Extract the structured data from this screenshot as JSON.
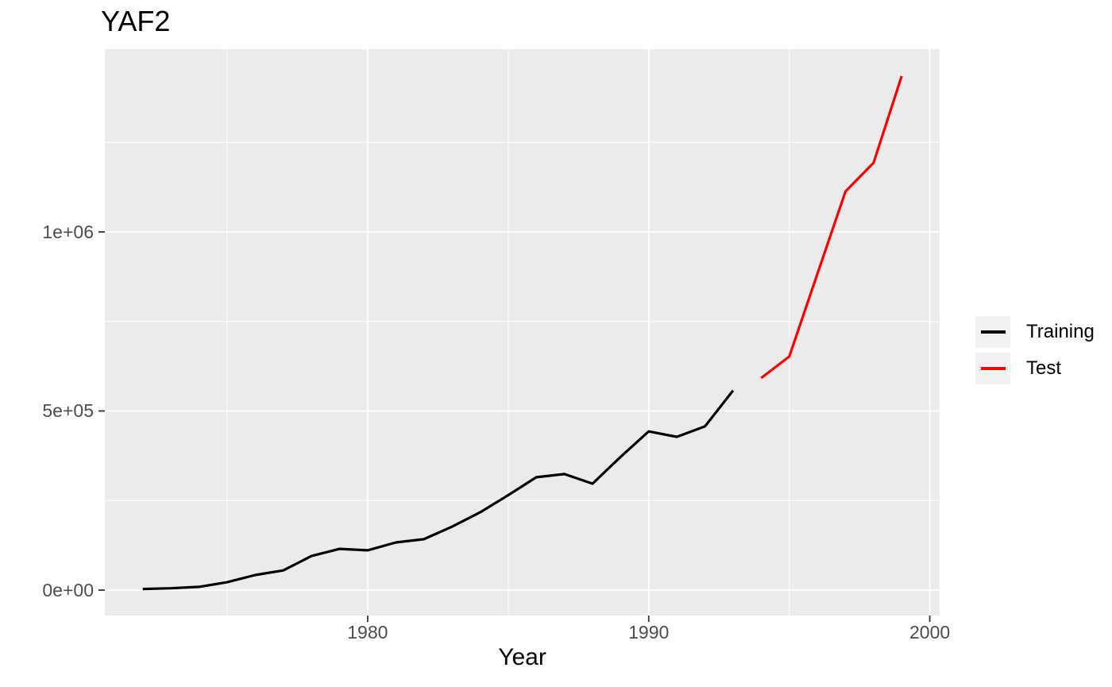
{
  "chart_data": {
    "type": "line",
    "title": "YAF2",
    "xlabel": "Year",
    "ylabel": "",
    "grid": true,
    "legend_position": "right-center",
    "xlim": [
      1970.65,
      2000.35
    ],
    "ylim": [
      -71000,
      1510000
    ],
    "x_ticks": [
      {
        "value": 1980,
        "label": "1980"
      },
      {
        "value": 1990,
        "label": "1990"
      },
      {
        "value": 2000,
        "label": "2000"
      }
    ],
    "x_minor": [
      1975,
      1985,
      1995
    ],
    "y_ticks": [
      {
        "value": 0,
        "label": "0e+00"
      },
      {
        "value": 500000,
        "label": "5e+05"
      },
      {
        "value": 1000000,
        "label": "1e+06"
      }
    ],
    "y_minor": [
      250000,
      750000,
      1250000
    ],
    "series": [
      {
        "name": "Training",
        "color": "#000000",
        "x": [
          1972,
          1973,
          1974,
          1975,
          1976,
          1977,
          1978,
          1979,
          1980,
          1981,
          1982,
          1983,
          1984,
          1985,
          1986,
          1987,
          1988,
          1989,
          1990,
          1991,
          1992,
          1993
        ],
        "values": [
          3000,
          5000,
          9000,
          22000,
          42000,
          55000,
          95000,
          115000,
          111000,
          133000,
          142000,
          177000,
          217000,
          265000,
          315000,
          324000,
          297000,
          372000,
          443000,
          428000,
          457000,
          557000
        ]
      },
      {
        "name": "Test",
        "color": "#FF0000",
        "x": [
          1994,
          1995,
          1996,
          1997,
          1998,
          1999
        ],
        "values": [
          592000,
          652000,
          883000,
          1113000,
          1193000,
          1435000
        ]
      }
    ]
  },
  "colors": {
    "panel_bg": "#EBEBEB",
    "gridline": "#FFFFFF",
    "tick_mark": "#333333",
    "tick_label_text": "#4D4D4D",
    "legend_key_bg": "#F2F2F2",
    "title_text": "#000000"
  }
}
